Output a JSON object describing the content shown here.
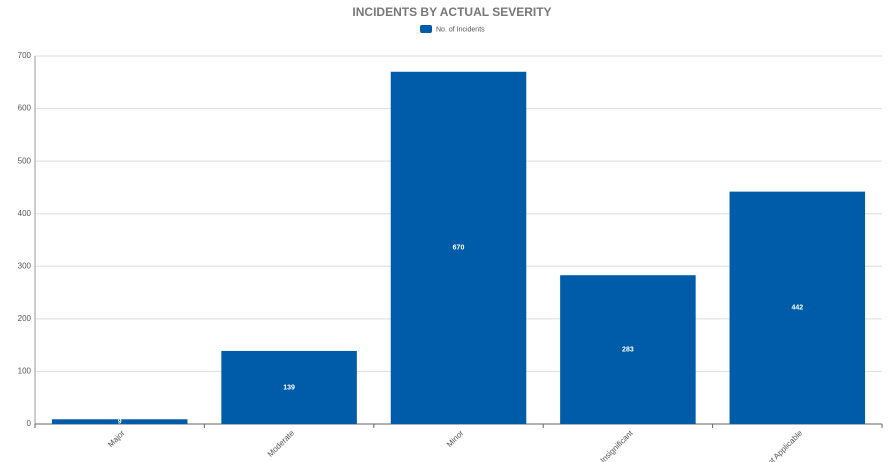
{
  "chart_data": {
    "type": "bar",
    "title": "INCIDENTS BY ACTUAL SEVERITY",
    "categories": [
      "Major",
      "Moderate",
      "Minor",
      "Insignificant",
      "Not Applicable"
    ],
    "series": [
      {
        "name": "No. of Incidents",
        "color": "#005ca8",
        "values": [
          9,
          139,
          670,
          283,
          442
        ]
      }
    ],
    "ylim": [
      0,
      700
    ],
    "yticks": [
      0,
      100,
      200,
      300,
      400,
      500,
      600,
      700
    ],
    "grid": true,
    "legend": "top"
  }
}
